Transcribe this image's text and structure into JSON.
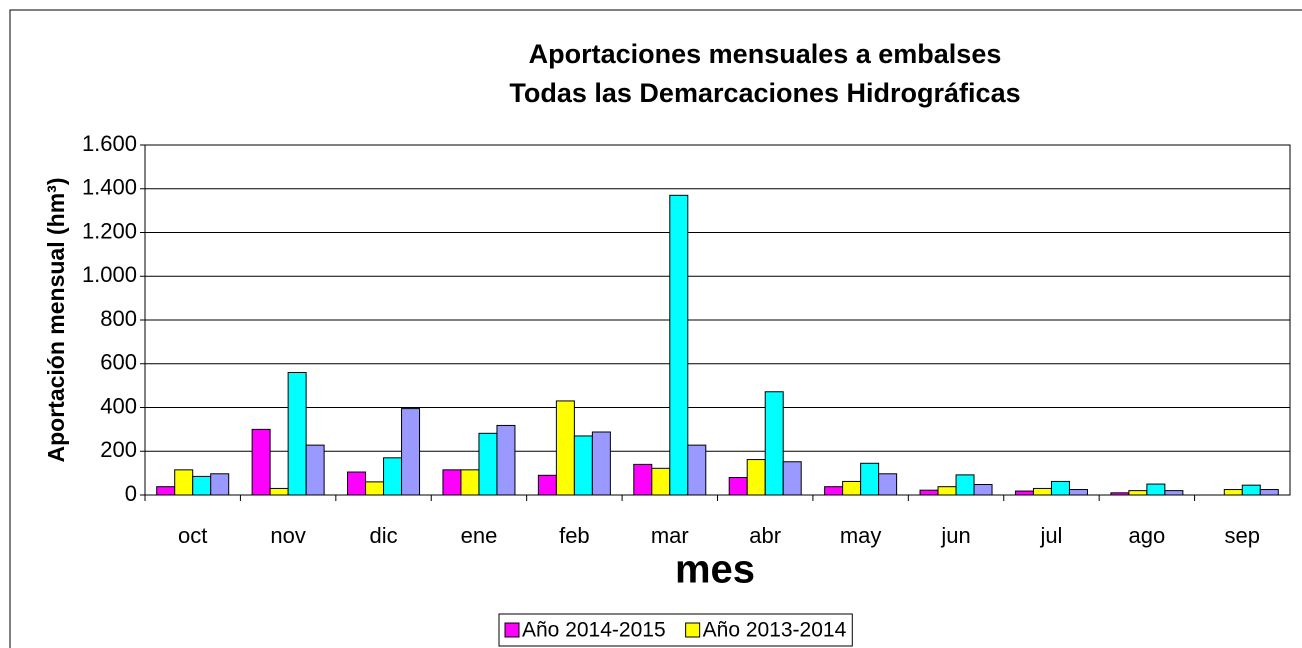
{
  "chart_data": {
    "type": "bar",
    "title": "Aportaciones mensuales a embalses",
    "subtitle": "Todas las Demarcaciones Hidrográficas",
    "x_label": "mes",
    "y_label": "Aportación mensual (hm³)",
    "categories": [
      "oct",
      "nov",
      "dic",
      "ene",
      "feb",
      "mar",
      "abr",
      "may",
      "jun",
      "jul",
      "ago",
      "sep"
    ],
    "series": [
      {
        "name": "Año 2014-2015",
        "color": "#ff00ff",
        "values": [
          38,
          300,
          105,
          115,
          90,
          140,
          80,
          38,
          22,
          18,
          10,
          0
        ]
      },
      {
        "name": "Año 2013-2014",
        "color": "#ffff00",
        "values": [
          115,
          30,
          60,
          115,
          430,
          122,
          162,
          62,
          38,
          30,
          20,
          25
        ]
      },
      {
        "color": "#00ffff",
        "values": [
          85,
          560,
          170,
          282,
          270,
          1370,
          472,
          145,
          92,
          62,
          50,
          45
        ]
      },
      {
        "color": "#9999ff",
        "values": [
          97,
          228,
          395,
          318,
          288,
          228,
          152,
          97,
          48,
          25,
          20,
          25
        ]
      }
    ],
    "ylim": [
      0,
      1600
    ],
    "yticks": [
      0,
      200,
      400,
      600,
      800,
      {
        "value": 1000,
        "label": "1.000"
      },
      {
        "value": 1200,
        "label": "1.200"
      },
      {
        "value": 1400,
        "label": "1.400"
      },
      {
        "value": 1600,
        "label": "1.600"
      }
    ],
    "grid": true,
    "legend": "bottom"
  }
}
